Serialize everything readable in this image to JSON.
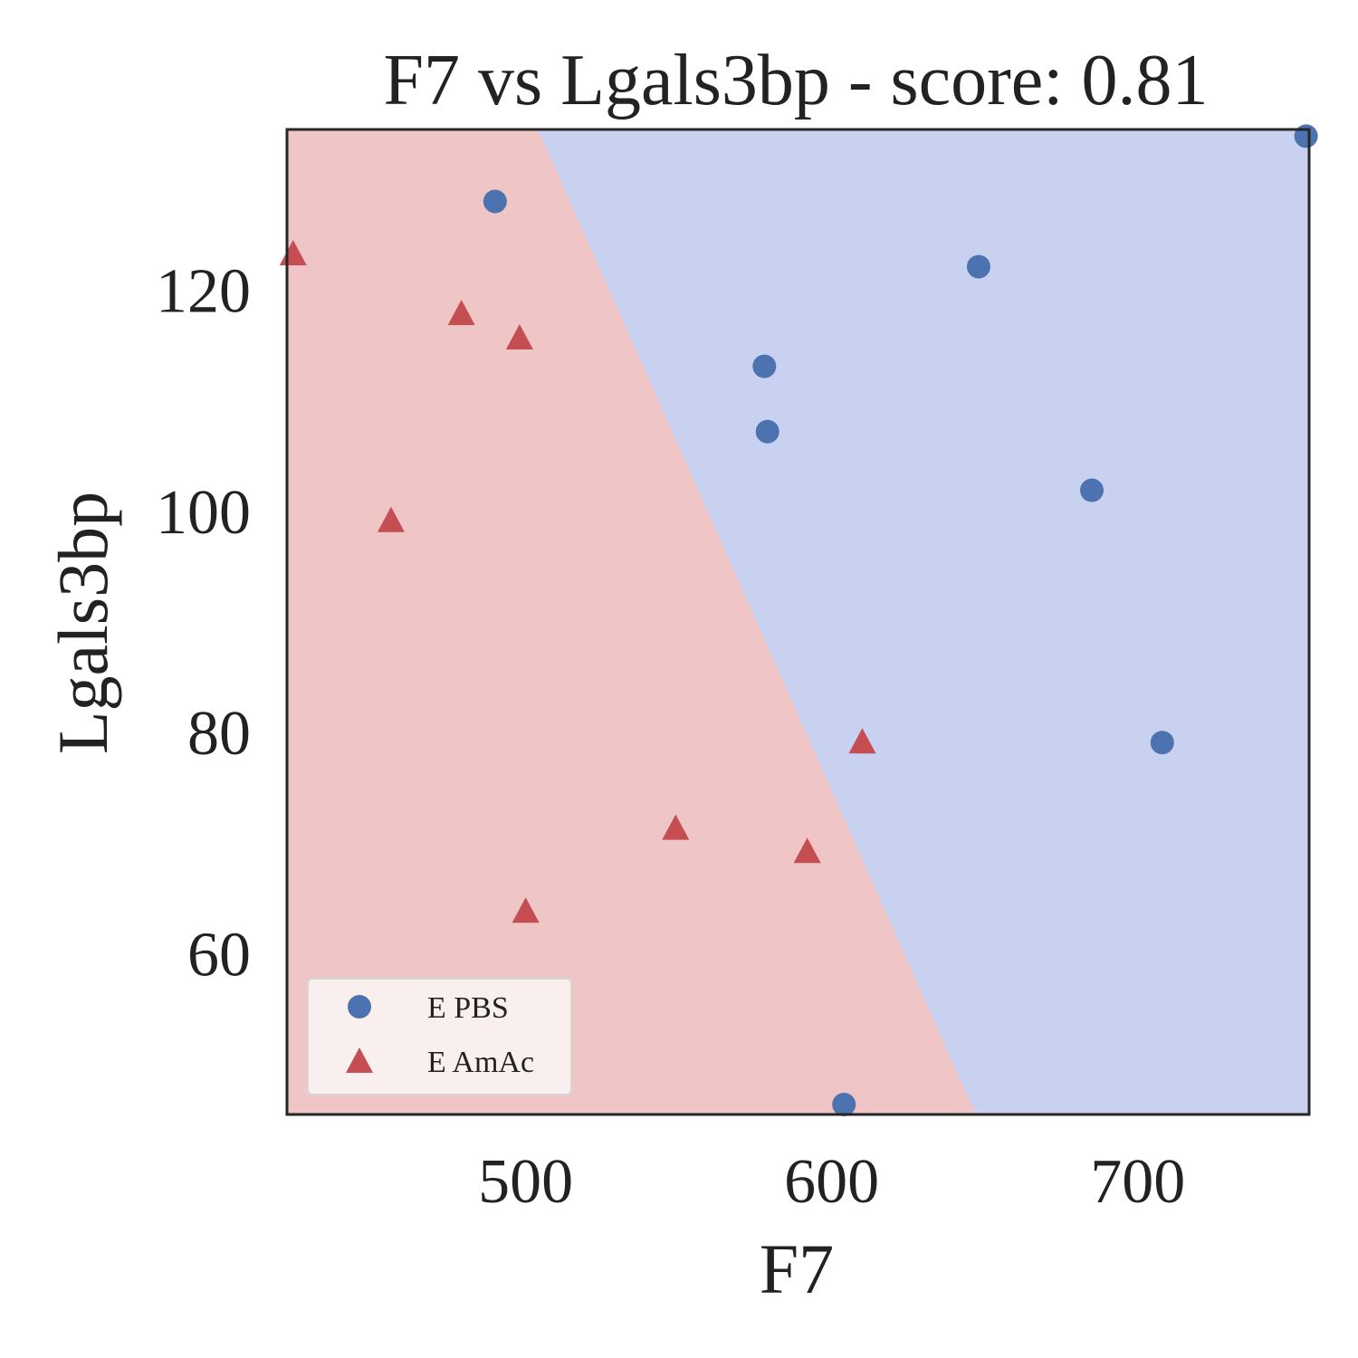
{
  "chart_data": {
    "type": "scatter",
    "title": "F7 vs Lgals3bp - score: 0.81",
    "xlabel": "F7",
    "ylabel": "Lgals3bp",
    "xlim": [
      422,
      756
    ],
    "ylim": [
      45.5,
      134.5
    ],
    "xticks": [
      500,
      600,
      700
    ],
    "yticks": [
      60,
      80,
      100,
      120
    ],
    "legend_position": "lower-left",
    "grid": false,
    "background_regions": [
      {
        "class": "E AmAc",
        "color": "#efc5c5",
        "polygon": [
          [
            422,
            45.5
          ],
          [
            422,
            134.5
          ],
          [
            504,
            134.5
          ],
          [
            647,
            45.5
          ]
        ]
      },
      {
        "class": "E PBS",
        "color": "#c9d1f1",
        "polygon": [
          [
            504,
            134.5
          ],
          [
            756,
            134.5
          ],
          [
            756,
            45.5
          ],
          [
            647,
            45.5
          ]
        ]
      }
    ],
    "series": [
      {
        "name": "E PBS",
        "marker": "circle",
        "color": "#4c72b0",
        "points": [
          [
            490,
            128.0
          ],
          [
            648,
            122.1
          ],
          [
            578,
            113.1
          ],
          [
            579,
            107.2
          ],
          [
            685,
            101.9
          ],
          [
            708,
            79.1
          ],
          [
            604,
            46.4
          ],
          [
            755,
            133.9
          ]
        ]
      },
      {
        "name": "E AmAc",
        "marker": "triangle",
        "color": "#c44e52",
        "points": [
          [
            424,
            123.2
          ],
          [
            479,
            117.8
          ],
          [
            498,
            115.6
          ],
          [
            456,
            99.1
          ],
          [
            610,
            79.1
          ],
          [
            549,
            71.3
          ],
          [
            592,
            69.2
          ],
          [
            500,
            63.8
          ]
        ]
      }
    ]
  }
}
